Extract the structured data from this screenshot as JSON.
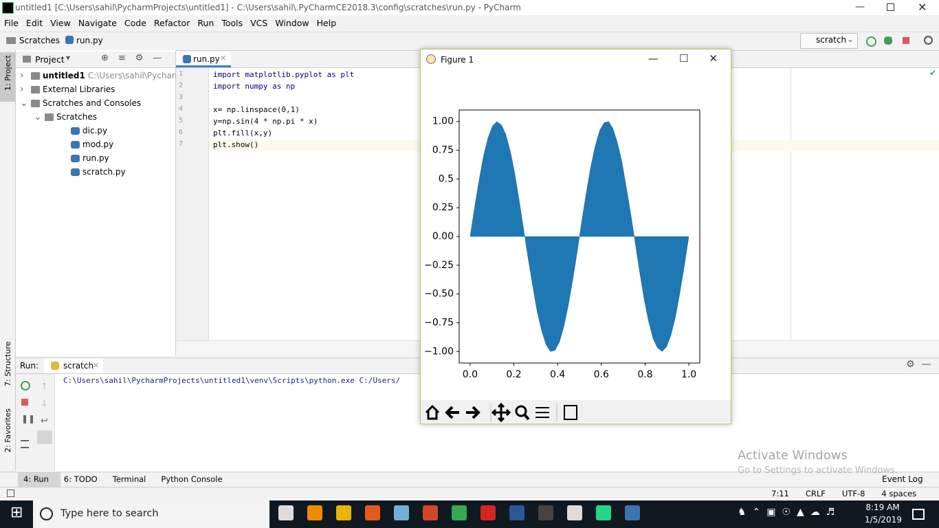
{
  "window": {
    "title": "untitled1 [C:\\Users\\sahil\\PycharmProjects\\untitled1] - C:\\Users\\sahil\\.PyCharmCE2018.3\\config\\scratches\\run.py - PyCharm"
  },
  "menu": [
    "File",
    "Edit",
    "View",
    "Navigate",
    "Code",
    "Refactor",
    "Run",
    "Tools",
    "VCS",
    "Window",
    "Help"
  ],
  "breadcrumbs": [
    "Scratches",
    "run.py"
  ],
  "run_config": "scratch",
  "side_tabs": [
    "1: Project",
    "7: Structure",
    "2: Favorites"
  ],
  "project_panel": {
    "title": "Project",
    "tree": [
      {
        "label": "untitled1",
        "detail": "C:\\Users\\sahil\\PycharmPr"
      },
      {
        "label": "External Libraries"
      },
      {
        "label": "Scratches and Consoles"
      },
      {
        "label": "Scratches"
      },
      {
        "label": "dic.py"
      },
      {
        "label": "mod.py"
      },
      {
        "label": "run.py"
      },
      {
        "label": "scratch.py"
      }
    ]
  },
  "editor": {
    "tab": "run.py",
    "line_numbers": [
      "1",
      "2",
      "3",
      "4",
      "5",
      "6",
      "7"
    ],
    "lines": [
      "import matplotlib.pyplot as plt",
      "import numpy as np",
      "",
      "x= np.linspace(0,1)",
      "y=np.sin(4 * np.pi * x)",
      "plt.fill(x,y)",
      "plt.show()"
    ]
  },
  "run_panel": {
    "label": "Run:",
    "tab": "scratch",
    "output": "C:\\Users\\sahil\\PycharmProjects\\untitled1\\venv\\Scripts\\python.exe C:/Users/"
  },
  "bottom_tabs": [
    "4: Run",
    "6: TODO",
    "Terminal",
    "Python Console"
  ],
  "event_log": "Event Log",
  "status": [
    "7:11",
    "CRLF",
    "UTF-8",
    "4 spaces"
  ],
  "watermark": {
    "title": "Activate Windows",
    "text": "Go to Settings to activate Windows."
  },
  "taskbar": {
    "search": "Type here to search",
    "time": "8:19 AM",
    "date": "1/5/2019"
  },
  "figure": {
    "title": "Figure 1"
  },
  "chart_data": {
    "type": "area",
    "color": "#1f77b4",
    "x": [
      0,
      0.02,
      0.041,
      0.061,
      0.082,
      0.102,
      0.122,
      0.143,
      0.163,
      0.184,
      0.204,
      0.224,
      0.245,
      0.265,
      0.286,
      0.306,
      0.327,
      0.347,
      0.367,
      0.388,
      0.408,
      0.429,
      0.449,
      0.469,
      0.49,
      0.51,
      0.531,
      0.551,
      0.571,
      0.592,
      0.612,
      0.633,
      0.653,
      0.673,
      0.694,
      0.714,
      0.735,
      0.755,
      0.776,
      0.796,
      0.816,
      0.837,
      0.857,
      0.878,
      0.898,
      0.918,
      0.939,
      0.959,
      0.98,
      1
    ],
    "values": [
      0,
      0.25,
      0.49,
      0.7,
      0.86,
      0.96,
      1.0,
      0.97,
      0.89,
      0.74,
      0.55,
      0.32,
      0.06,
      -0.19,
      -0.43,
      -0.65,
      -0.82,
      -0.94,
      -1.0,
      -0.99,
      -0.92,
      -0.78,
      -0.6,
      -0.38,
      -0.13,
      0.13,
      0.38,
      0.6,
      0.78,
      0.92,
      0.99,
      1.0,
      0.94,
      0.82,
      0.65,
      0.43,
      0.19,
      -0.06,
      -0.32,
      -0.55,
      -0.74,
      -0.89,
      -0.97,
      -1.0,
      -0.96,
      -0.86,
      -0.7,
      -0.49,
      -0.25,
      0
    ],
    "xlim": [
      -0.05,
      1.05
    ],
    "ylim": [
      -1.1,
      1.1
    ],
    "xticks": [
      {
        "value": 0,
        "label": "0.0"
      },
      0.2,
      0.4,
      0.6,
      0.8,
      {
        "value": 1,
        "label": "1.0"
      }
    ],
    "yticks": [
      {
        "value": 1,
        "label": "1.00"
      },
      0.75,
      0.5,
      0.25,
      {
        "value": 0,
        "label": "0.00"
      },
      {
        "value": -0.25,
        "label": "−0.25"
      },
      {
        "value": -0.5,
        "label": "−0.50"
      },
      {
        "value": -0.75,
        "label": "−0.75"
      },
      {
        "value": -1,
        "label": "−1.00"
      }
    ]
  }
}
